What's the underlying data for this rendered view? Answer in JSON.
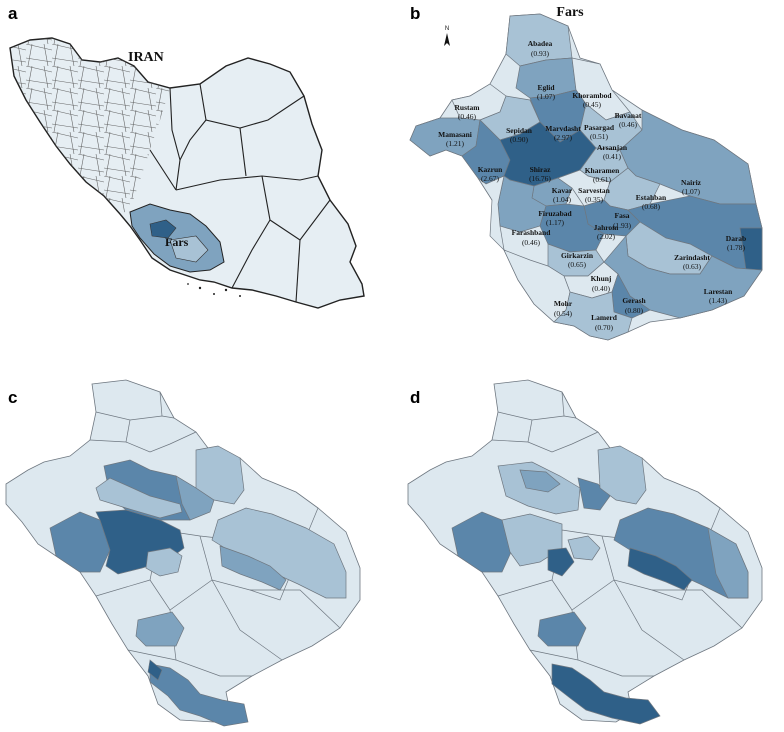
{
  "panels": [
    {
      "letter": "a",
      "title": "IRAN",
      "highlight": "Fars"
    },
    {
      "letter": "b",
      "title": "Fars",
      "north": "N"
    },
    {
      "letter": "c"
    },
    {
      "letter": "d"
    }
  ],
  "colors": {
    "c1": "#dde8ef",
    "c2": "#a8c2d5",
    "c3": "#7fa3bf",
    "c4": "#5b86aa",
    "c5": "#2f6088",
    "border": "#6e7780"
  },
  "districts": [
    {
      "name": "Abadea",
      "value": "(0.93)"
    },
    {
      "name": "Eglid",
      "value": "(1.07)"
    },
    {
      "name": "Khorambod",
      "value": "(0.45)"
    },
    {
      "name": "Bavanat",
      "value": "(0.46)"
    },
    {
      "name": "Rustam",
      "value": "(0.46)"
    },
    {
      "name": "Pasargad",
      "value": "(0.51)"
    },
    {
      "name": "Sepidan",
      "value": "(0.90)"
    },
    {
      "name": "Marvdasht",
      "value": "(2.97)"
    },
    {
      "name": "Mamasani",
      "value": "(1.21)"
    },
    {
      "name": "Arsanjan",
      "value": "(0.41)"
    },
    {
      "name": "Kazrun",
      "value": "(2.67)"
    },
    {
      "name": "Shiraz",
      "value": "(16.76)"
    },
    {
      "name": "Kharamen",
      "value": "(0.61)"
    },
    {
      "name": "Nairiz",
      "value": "(1.07)"
    },
    {
      "name": "Kavar",
      "value": "(1.04)"
    },
    {
      "name": "Sarvestan",
      "value": "(0.35)"
    },
    {
      "name": "Estahban",
      "value": "(0.68)"
    },
    {
      "name": "Firuzabad",
      "value": "(1.17)"
    },
    {
      "name": "Fasa",
      "value": "(1.93)"
    },
    {
      "name": "Farashband",
      "value": "(0.46)"
    },
    {
      "name": "Jahrom",
      "value": "(2.02)"
    },
    {
      "name": "Darab",
      "value": "(1.78)"
    },
    {
      "name": "Girkarzin",
      "value": "(0.65)"
    },
    {
      "name": "Zarindasht",
      "value": "(0.63)"
    },
    {
      "name": "Khunj",
      "value": "(0.40)"
    },
    {
      "name": "Larestan",
      "value": "(1.43)"
    },
    {
      "name": "Mohr",
      "value": "(0.54)"
    },
    {
      "name": "Gerash",
      "value": "(0.80)"
    },
    {
      "name": "Lamerd",
      "value": "(0.70)"
    }
  ]
}
